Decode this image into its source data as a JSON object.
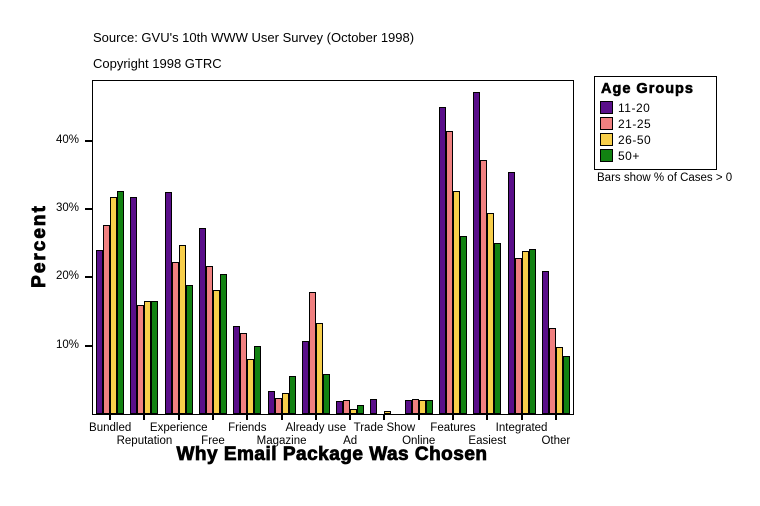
{
  "header": {
    "source": "Source: GVU's 10th WWW User Survey (October 1998)",
    "copyright": "Copyright 1998 GTRC"
  },
  "legend": {
    "title": "Age Groups",
    "note": "Bars show % of Cases > 0"
  },
  "chart_data": {
    "type": "bar",
    "title": "",
    "xlabel": "Why Email Package Was Chosen",
    "ylabel": "Percent",
    "ylim": [
      0,
      48.75
    ],
    "yticks": [
      10,
      20,
      30,
      40
    ],
    "ytick_labels": [
      "10%",
      "20%",
      "30%",
      "40%"
    ],
    "grid": false,
    "legend_position": "right",
    "categories": [
      "Bundled",
      "Reputation",
      "Experience",
      "Free",
      "Friends",
      "Magazine",
      "Already use",
      "Ad",
      "Trade Show",
      "Online",
      "Features",
      "Easiest",
      "Integrated",
      "Other"
    ],
    "series": [
      {
        "name": "11-20",
        "color": "#5A0F8A",
        "values": [
          24.0,
          31.8,
          32.5,
          27.3,
          12.9,
          3.4,
          10.7,
          1.9,
          2.2,
          2.1,
          44.9,
          47.1,
          35.5,
          21.0
        ]
      },
      {
        "name": "21-25",
        "color": "#F08080",
        "values": [
          27.6,
          16.0,
          22.3,
          21.6,
          11.9,
          2.4,
          17.8,
          2.1,
          0,
          2.2,
          41.5,
          37.2,
          22.8,
          12.6
        ]
      },
      {
        "name": "26-50",
        "color": "#F7CE4A",
        "values": [
          31.8,
          16.5,
          24.7,
          18.1,
          8.0,
          3.1,
          13.3,
          0.8,
          0.4,
          2.1,
          32.7,
          29.5,
          23.9,
          9.8
        ]
      },
      {
        "name": "50+",
        "color": "#128212",
        "values": [
          32.6,
          16.5,
          18.9,
          20.5,
          10.0,
          5.5,
          5.9,
          1.3,
          0,
          2.1,
          26.1,
          25.1,
          24.2,
          8.5
        ]
      }
    ]
  }
}
